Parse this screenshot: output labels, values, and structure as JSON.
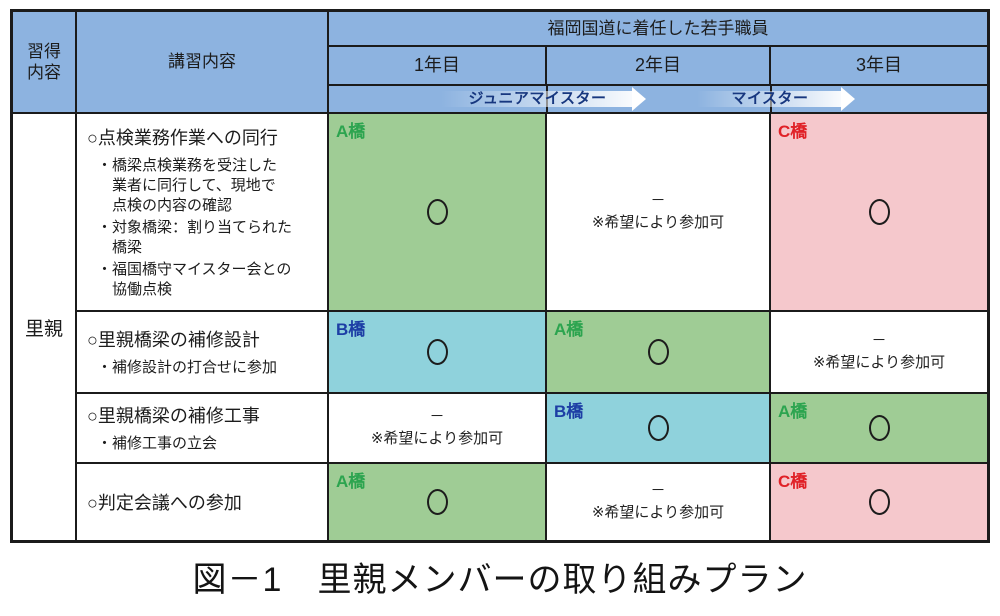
{
  "colors": {
    "header_blue": "#8db3e0",
    "cell_green": "#9fcc95",
    "cell_cyan": "#8fd2dc",
    "cell_pink": "#f5c8cc",
    "bridge_a_text": "#2ca44f",
    "bridge_b_text": "#1d3ea5",
    "bridge_c_text": "#e02127",
    "arrow_label_navy": "#17377f",
    "border": "#1b1b1b"
  },
  "header": {
    "acquire_label": "習得\n内容",
    "training_label": "講習内容",
    "staff_group_label": "福岡国道に着任した若手職員",
    "year_columns": [
      "1年目",
      "2年目",
      "3年目"
    ],
    "arrow_labels": [
      "ジュニアマイスター",
      "マイスター"
    ]
  },
  "body": {
    "group_label": "里親",
    "rows": [
      {
        "title": "○点検業務作業への同行",
        "bullets": [
          "・橋梁点検業務を受注した\n業者に同行して、現地で\n点検の内容の確認",
          "・対象橋梁：割り当てられた\n橋梁",
          "・福国橋守マイスター会との\n協働点検"
        ],
        "cells": [
          {
            "bridge": "A橋",
            "mark": "○",
            "style": "green"
          },
          {
            "dash": "－",
            "note": "※希望により参加可",
            "style": "white"
          },
          {
            "bridge": "C橋",
            "mark": "○",
            "style": "pink"
          }
        ]
      },
      {
        "title": "○里親橋梁の補修設計",
        "bullets": [
          "・補修設計の打合せに参加"
        ],
        "cells": [
          {
            "bridge": "B橋",
            "mark": "○",
            "style": "cyan"
          },
          {
            "bridge": "A橋",
            "mark": "○",
            "style": "green"
          },
          {
            "dash": "－",
            "note": "※希望により参加可",
            "style": "white"
          }
        ]
      },
      {
        "title": "○里親橋梁の補修工事",
        "bullets": [
          "・補修工事の立会"
        ],
        "cells": [
          {
            "dash": "－",
            "note": "※希望により参加可",
            "style": "white"
          },
          {
            "bridge": "B橋",
            "mark": "○",
            "style": "cyan"
          },
          {
            "bridge": "A橋",
            "mark": "○",
            "style": "green"
          }
        ]
      },
      {
        "title": "○判定会議への参加",
        "bullets": [],
        "cells": [
          {
            "bridge": "A橋",
            "mark": "○",
            "style": "green"
          },
          {
            "dash": "－",
            "note": "※希望により参加可",
            "style": "white"
          },
          {
            "bridge": "C橋",
            "mark": "○",
            "style": "pink"
          }
        ]
      }
    ]
  },
  "caption": "図－1　里親メンバーの取り組みプラン"
}
